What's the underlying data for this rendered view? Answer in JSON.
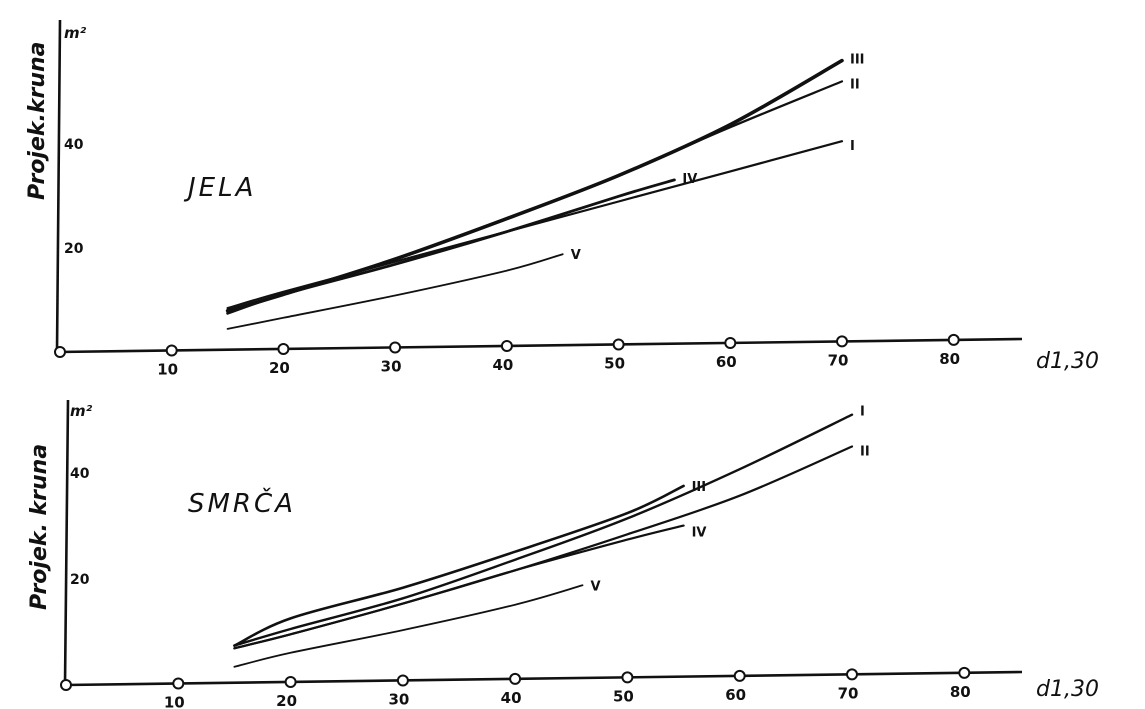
{
  "chart_data": [
    {
      "type": "line",
      "title": "JELA",
      "ylabel": "Projek.kruna",
      "yunit": "m²",
      "xlabel": "d1,30",
      "xlim": [
        0,
        88
      ],
      "ylim": [
        0,
        57
      ],
      "xticks": [
        "10",
        "20",
        "30",
        "40",
        "50",
        "60",
        "70",
        "80"
      ],
      "yticks": [
        "20",
        "40"
      ],
      "grid": false,
      "series": [
        {
          "name": "III",
          "x": [
            15,
            20,
            30,
            40,
            50,
            60,
            70
          ],
          "values": [
            7.5,
            10.5,
            17,
            24.5,
            32.5,
            42,
            54
          ]
        },
        {
          "name": "II",
          "x": [
            15,
            20,
            30,
            40,
            50,
            60,
            70
          ],
          "values": [
            7.5,
            10.5,
            17,
            24.5,
            32.5,
            41.5,
            50
          ]
        },
        {
          "name": "I",
          "x": [
            15,
            20,
            30,
            40,
            50,
            60,
            70
          ],
          "values": [
            8,
            11,
            16.5,
            22,
            27.5,
            33,
            38.5
          ]
        },
        {
          "name": "IV",
          "x": [
            15,
            20,
            30,
            40,
            50,
            55
          ],
          "values": [
            7,
            10.5,
            16,
            22,
            28.5,
            31.5
          ]
        },
        {
          "name": "V",
          "x": [
            15,
            20,
            30,
            40,
            45
          ],
          "values": [
            4,
            6,
            10,
            14.5,
            17.5
          ]
        }
      ]
    },
    {
      "type": "line",
      "title": "SMRČA",
      "ylabel": "Projek. kruna",
      "yunit": "m²",
      "xlabel": "d1,30",
      "xlim": [
        0,
        88
      ],
      "ylim": [
        0,
        57
      ],
      "xticks": [
        "10",
        "20",
        "30",
        "40",
        "50",
        "60",
        "70",
        "80"
      ],
      "yticks": [
        "20",
        "40"
      ],
      "grid": false,
      "series": [
        {
          "name": "I",
          "x": [
            15,
            20,
            30,
            40,
            50,
            60,
            70
          ],
          "values": [
            7,
            10,
            15.5,
            22.5,
            30,
            39,
            49
          ]
        },
        {
          "name": "II",
          "x": [
            15,
            20,
            30,
            40,
            50,
            60,
            70
          ],
          "values": [
            6.5,
            9,
            14.5,
            20.5,
            27,
            34,
            43
          ]
        },
        {
          "name": "III",
          "x": [
            15,
            20,
            30,
            40,
            50,
            55
          ],
          "values": [
            7,
            12,
            17.5,
            24,
            31,
            36
          ]
        },
        {
          "name": "IV",
          "x": [
            15,
            20,
            30,
            40,
            50,
            55
          ],
          "values": [
            6.5,
            9,
            14.5,
            20.5,
            26,
            28.5
          ]
        },
        {
          "name": "V",
          "x": [
            15,
            20,
            30,
            40,
            46
          ],
          "values": [
            3,
            5.5,
            9.5,
            14,
            17.5
          ]
        }
      ]
    }
  ]
}
